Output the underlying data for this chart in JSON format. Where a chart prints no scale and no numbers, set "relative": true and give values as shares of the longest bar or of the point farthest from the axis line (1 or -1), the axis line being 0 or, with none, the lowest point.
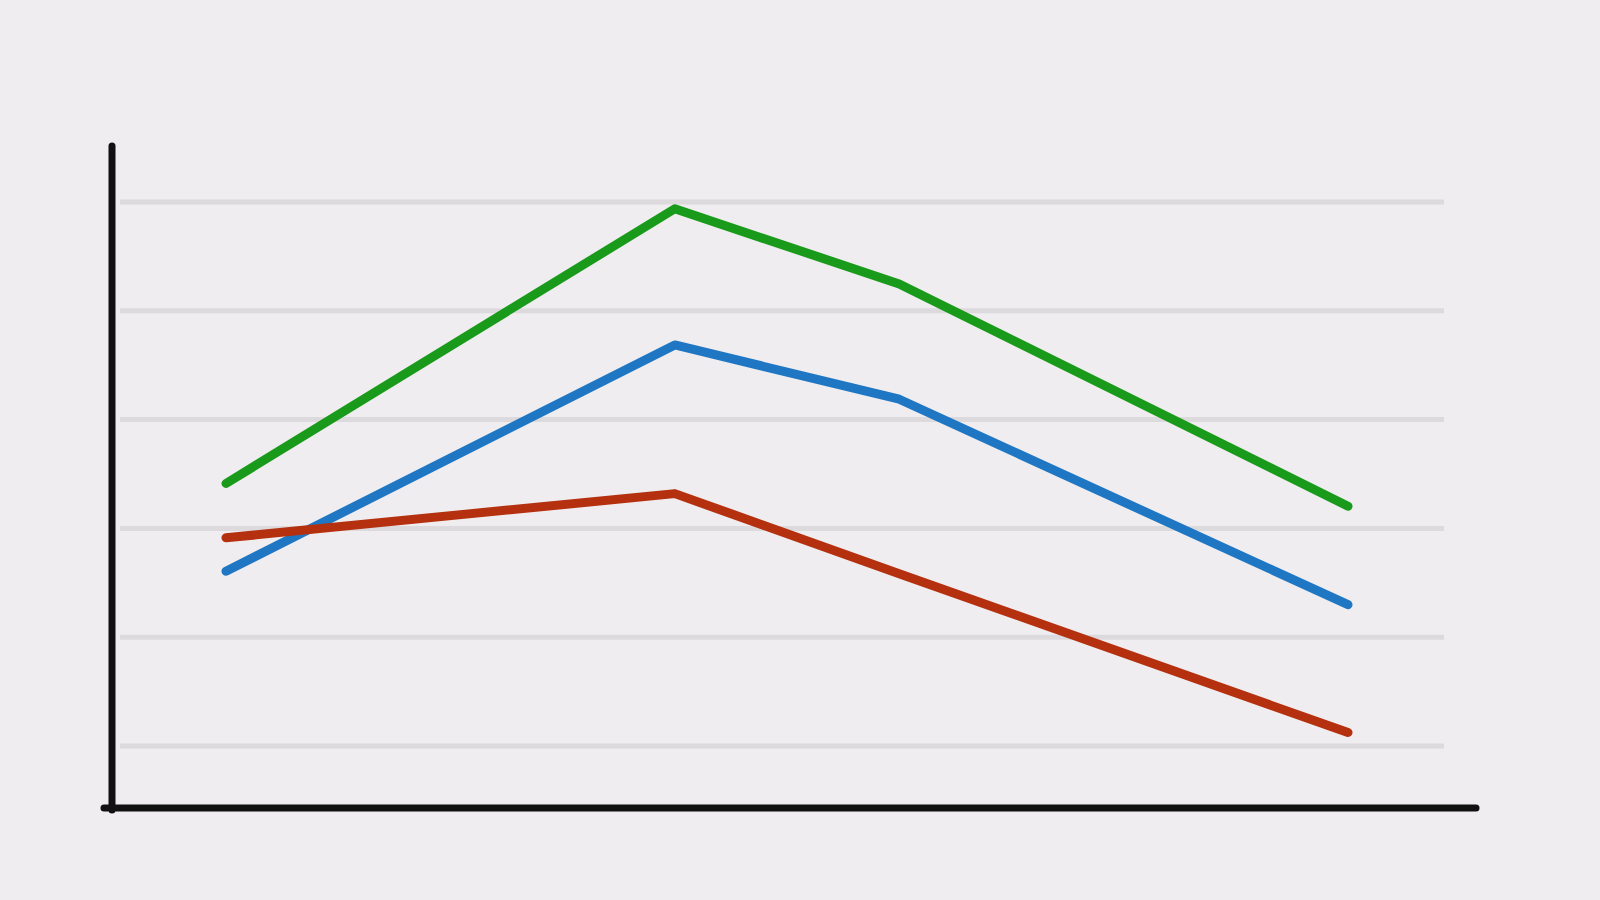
{
  "chart_data": {
    "type": "line",
    "relative": true,
    "grid": true,
    "categories": [
      null,
      null,
      null,
      null,
      null,
      null
    ],
    "series": [
      {
        "color": "#1a9a1a",
        "values": [
          0.54,
          null,
          1,
          0.874,
          null,
          0.502
        ]
      },
      {
        "color": "#1f77c4",
        "values": [
          0.393,
          null,
          0.772,
          0.681,
          null,
          0.337
        ]
      },
      {
        "color": "#b5300f",
        "values": [
          0.449,
          null,
          0.523,
          0.389,
          null,
          0.123
        ]
      }
    ]
  }
}
